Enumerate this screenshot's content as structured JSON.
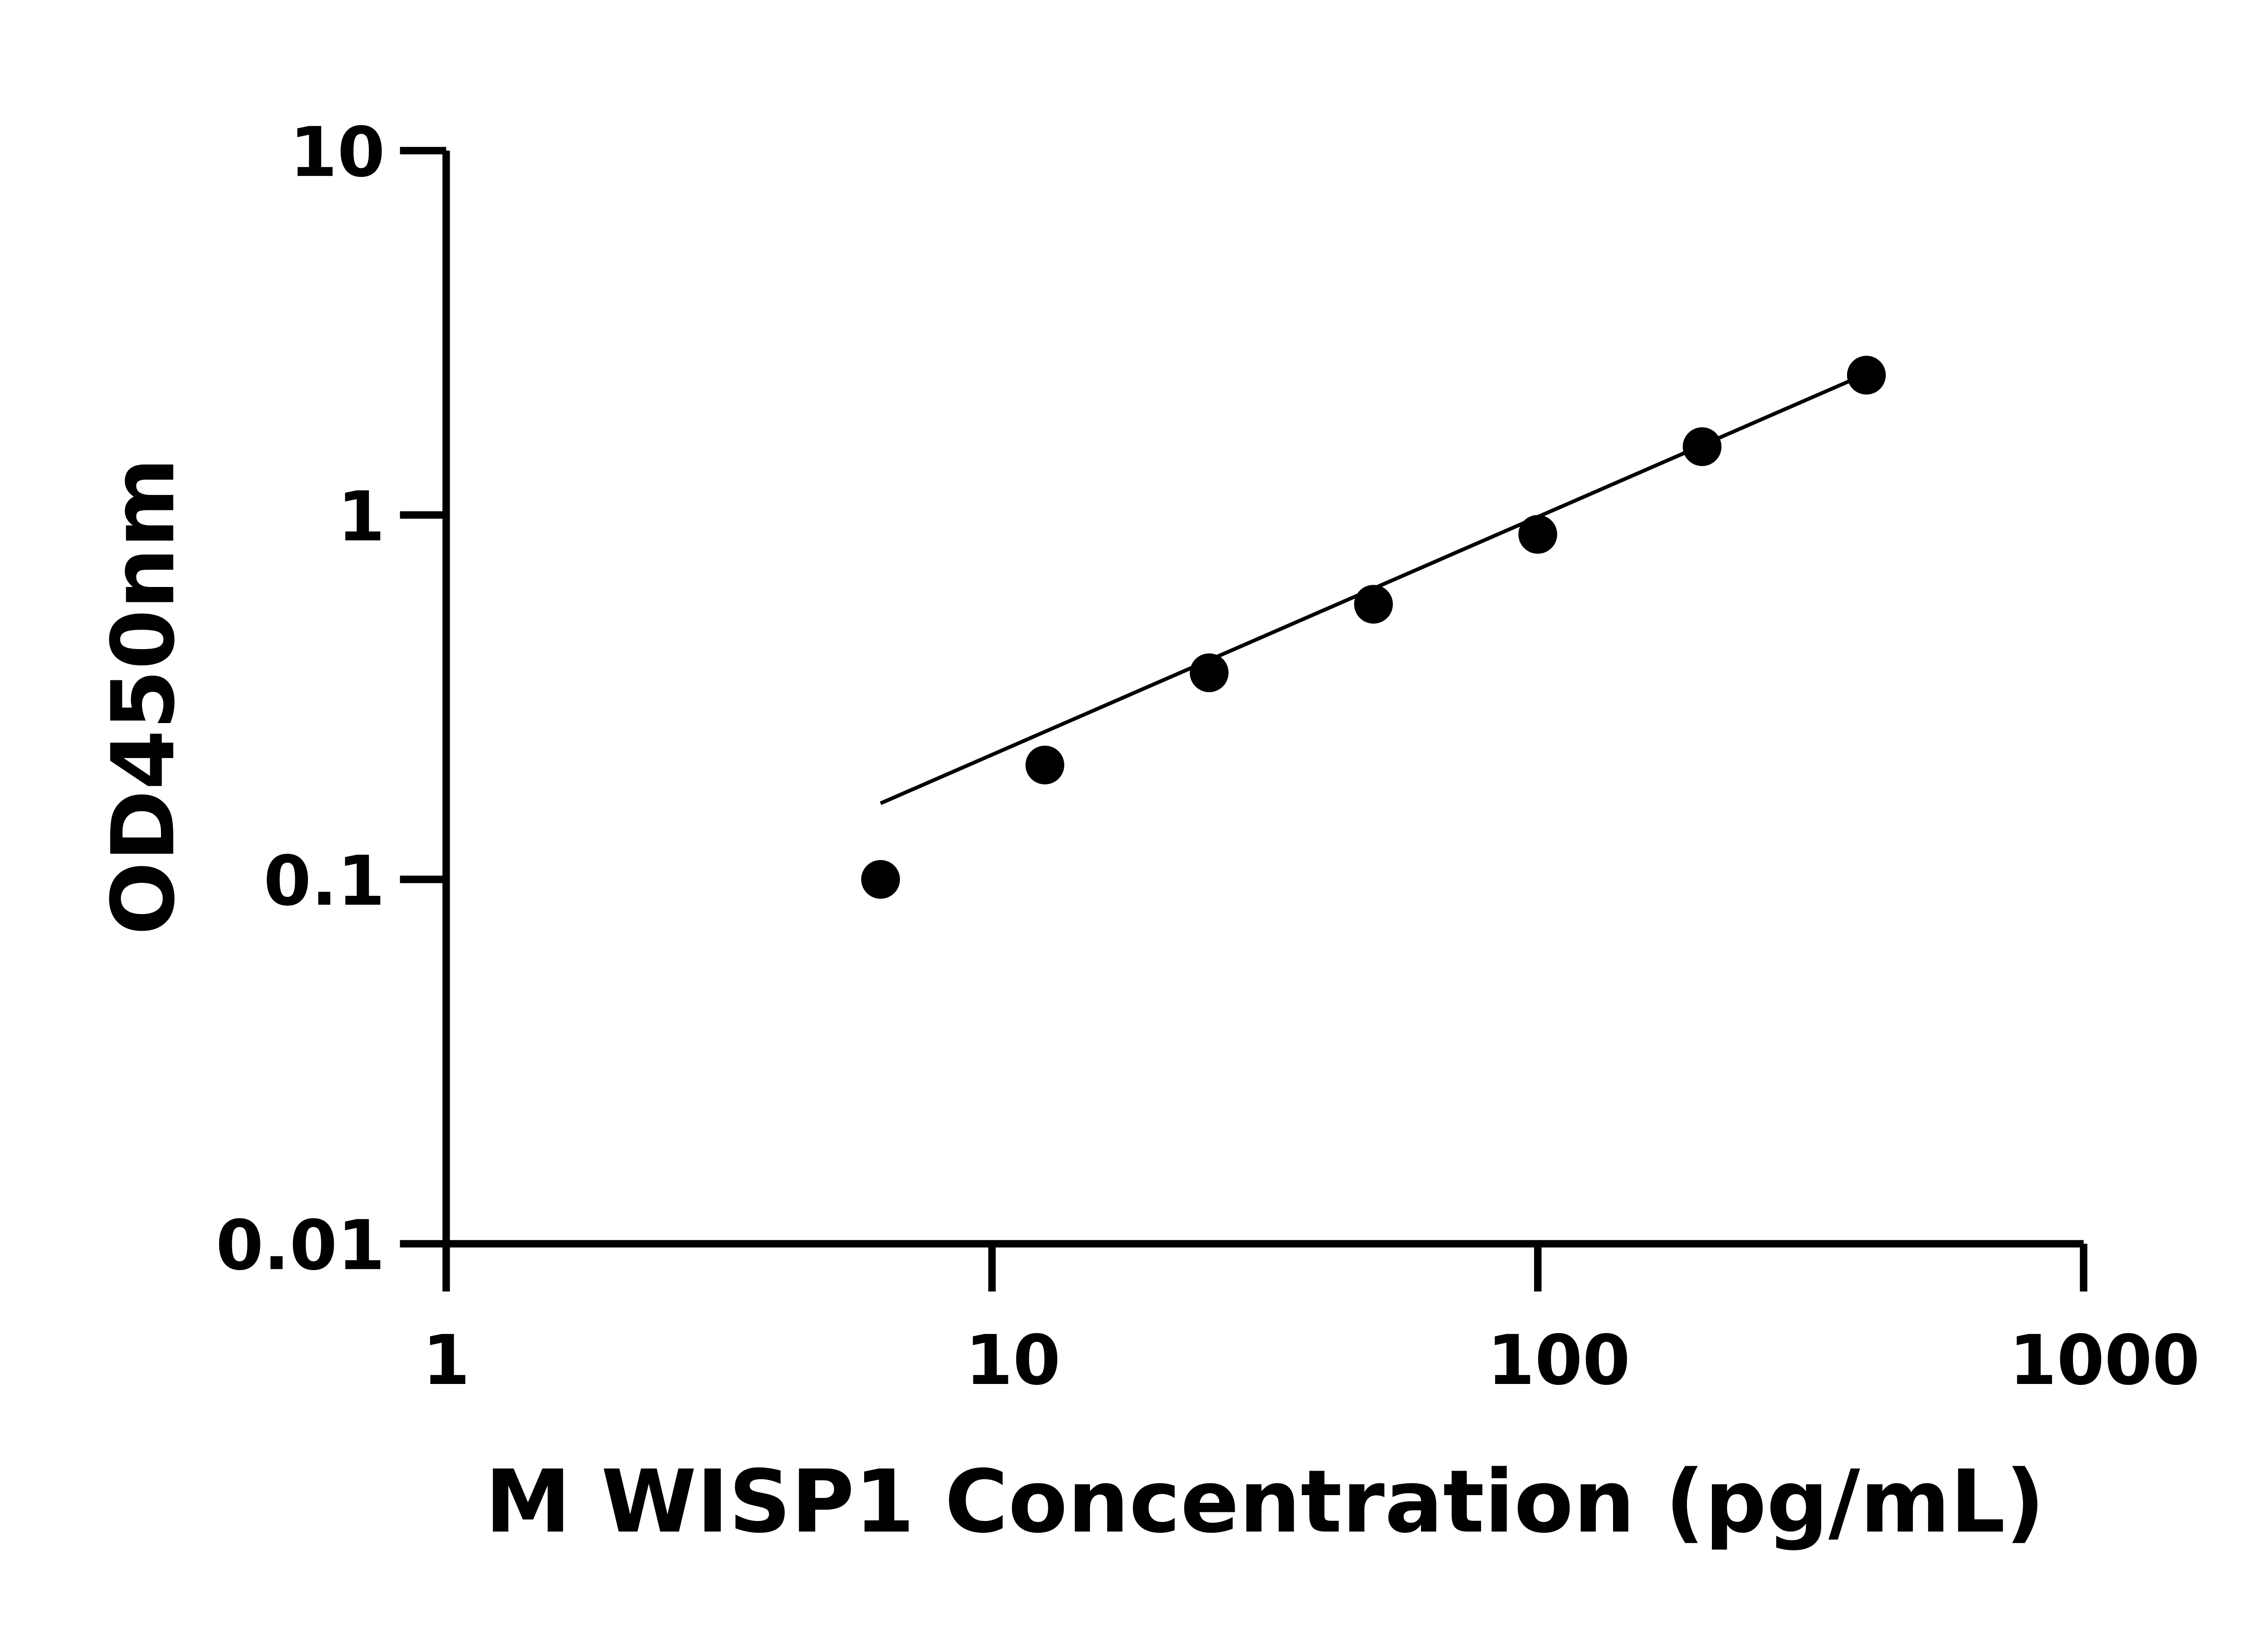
{
  "chart_data": {
    "type": "scatter",
    "title": "",
    "xlabel": "M WISP1 Concentration (pg/mL)",
    "ylabel": "OD450nm",
    "xscale": "log",
    "yscale": "log",
    "xlim": [
      1,
      1000
    ],
    "ylim": [
      0.01,
      10
    ],
    "xticks": [
      "1",
      "10",
      "100",
      "1000"
    ],
    "yticks": [
      "0.01",
      "0.1",
      "1",
      "10"
    ],
    "grid": false,
    "legend": "none",
    "fit": "linear fit on log-log axes",
    "series": [
      {
        "x": [
          6.25,
          12.5,
          25,
          50,
          100,
          200,
          400
        ],
        "y": [
          0.1,
          0.206,
          0.369,
          0.569,
          0.885,
          1.54,
          2.42
        ]
      }
    ],
    "colors": {
      "points": "#000000",
      "line": "#000000",
      "axes": "#000000"
    }
  }
}
